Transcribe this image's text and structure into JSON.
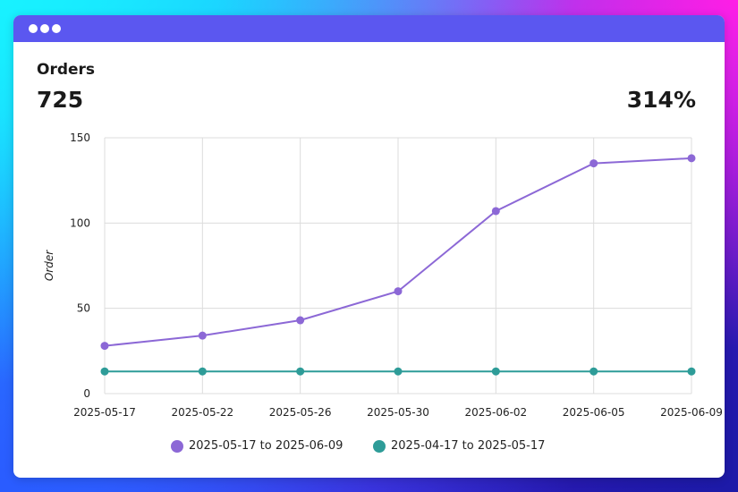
{
  "card": {
    "title": "Orders",
    "value": "725",
    "change": "314%"
  },
  "colors": {
    "titlebar": "#5b57f0",
    "series_current": "#8c68d6",
    "series_previous": "#2e9c98"
  },
  "chart_data": {
    "type": "line",
    "x": [
      "2025-05-17",
      "2025-05-22",
      "2025-05-26",
      "2025-05-30",
      "2025-06-02",
      "2025-06-05",
      "2025-06-09"
    ],
    "ylabel": "Order",
    "xlabel": "",
    "ylim": [
      0,
      150
    ],
    "yticks": [
      0,
      50,
      100,
      150
    ],
    "grid": true,
    "legend": "bottom",
    "series": [
      {
        "name": "2025-05-17 to 2025-06-09",
        "color": "#8c68d6",
        "values": [
          28,
          34,
          43,
          60,
          107,
          135,
          138
        ]
      },
      {
        "name": "2025-04-17 to 2025-05-17",
        "color": "#2e9c98",
        "values": [
          13,
          13,
          13,
          13,
          13,
          13,
          13
        ]
      }
    ]
  }
}
